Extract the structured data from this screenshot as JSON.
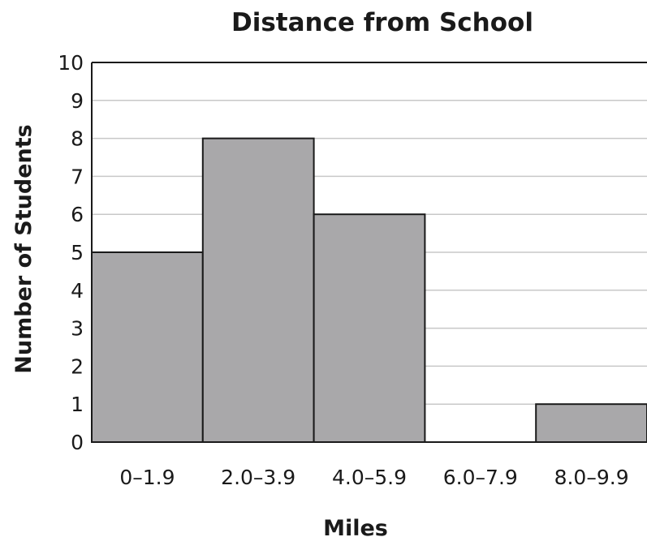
{
  "chart_data": {
    "type": "bar",
    "title": "Distance from School",
    "xlabel": "Miles",
    "ylabel": "Number of Students",
    "categories": [
      "0–1.9",
      "2.0–3.9",
      "4.0–5.9",
      "6.0–7.9",
      "8.0–9.9"
    ],
    "values": [
      5,
      8,
      6,
      0,
      1
    ],
    "ylim": [
      0,
      10
    ],
    "yticks": [
      "0",
      "1",
      "2",
      "3",
      "4",
      "5",
      "6",
      "7",
      "8",
      "9",
      "10"
    ],
    "grid": true,
    "colors": {
      "bar_fill": "#a9a8aa",
      "bar_stroke": "#1a1a1a",
      "grid": "#c8c8c8"
    }
  }
}
